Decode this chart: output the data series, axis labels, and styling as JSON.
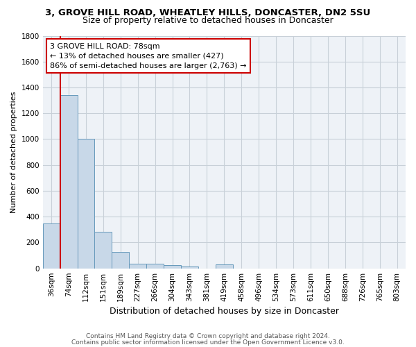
{
  "title1": "3, GROVE HILL ROAD, WHEATLEY HILLS, DONCASTER, DN2 5SU",
  "title2": "Size of property relative to detached houses in Doncaster",
  "xlabel": "Distribution of detached houses by size in Doncaster",
  "ylabel": "Number of detached properties",
  "bar_color": "#c8d8e8",
  "bar_edge_color": "#6699bb",
  "categories": [
    "36sqm",
    "74sqm",
    "112sqm",
    "151sqm",
    "189sqm",
    "227sqm",
    "266sqm",
    "304sqm",
    "343sqm",
    "381sqm",
    "419sqm",
    "458sqm",
    "496sqm",
    "534sqm",
    "573sqm",
    "611sqm",
    "650sqm",
    "688sqm",
    "726sqm",
    "765sqm",
    "803sqm"
  ],
  "values": [
    350,
    1340,
    1005,
    285,
    125,
    38,
    35,
    25,
    15,
    0,
    30,
    0,
    0,
    0,
    0,
    0,
    0,
    0,
    0,
    0,
    0
  ],
  "ylim": [
    0,
    1800
  ],
  "yticks": [
    0,
    200,
    400,
    600,
    800,
    1000,
    1200,
    1400,
    1600,
    1800
  ],
  "marker_line_color": "#cc0000",
  "annotation_line1": "3 GROVE HILL ROAD: 78sqm",
  "annotation_line2": "← 13% of detached houses are smaller (427)",
  "annotation_line3": "86% of semi-detached houses are larger (2,763) →",
  "annotation_box_color": "#ffffff",
  "annotation_box_edge": "#cc0000",
  "footer1": "Contains HM Land Registry data © Crown copyright and database right 2024.",
  "footer2": "Contains public sector information licensed under the Open Government Licence v3.0.",
  "bg_color": "#ffffff",
  "plot_bg_color": "#eef2f7",
  "grid_color": "#c8d0d8",
  "title1_fontsize": 9.5,
  "title2_fontsize": 9,
  "xlabel_fontsize": 9,
  "ylabel_fontsize": 8,
  "tick_fontsize": 7.5,
  "annotation_fontsize": 8,
  "footer_fontsize": 6.5
}
